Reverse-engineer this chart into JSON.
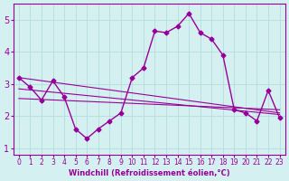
{
  "xlabel": "Windchill (Refroidissement éolien,°C)",
  "bg_color": "#d4f0f0",
  "line_color": "#990099",
  "grid_color": "#b8e0e0",
  "xlim": [
    -0.5,
    23.5
  ],
  "ylim": [
    0.8,
    5.5
  ],
  "yticks": [
    1,
    2,
    3,
    4,
    5
  ],
  "xticks": [
    0,
    1,
    2,
    3,
    4,
    5,
    6,
    7,
    8,
    9,
    10,
    11,
    12,
    13,
    14,
    15,
    16,
    17,
    18,
    19,
    20,
    21,
    22,
    23
  ],
  "x_main": [
    0,
    1,
    2,
    3,
    4,
    5,
    6,
    7,
    8,
    9,
    10,
    11,
    12,
    13,
    14,
    15,
    16,
    17,
    18,
    19,
    20,
    21,
    22,
    23
  ],
  "y_main": [
    3.2,
    2.9,
    2.5,
    3.1,
    2.6,
    1.6,
    1.3,
    1.6,
    1.85,
    2.1,
    3.2,
    3.5,
    4.65,
    4.6,
    4.8,
    5.2,
    4.6,
    4.4,
    3.9,
    2.2,
    2.1,
    1.85,
    2.8,
    1.95
  ],
  "reg_line1_x": [
    0,
    23
  ],
  "reg_line1_y": [
    3.2,
    2.1
  ],
  "reg_line2_x": [
    0,
    23
  ],
  "reg_line2_y": [
    2.85,
    2.05
  ],
  "reg_line3_x": [
    0,
    23
  ],
  "reg_line3_y": [
    2.55,
    2.2
  ]
}
